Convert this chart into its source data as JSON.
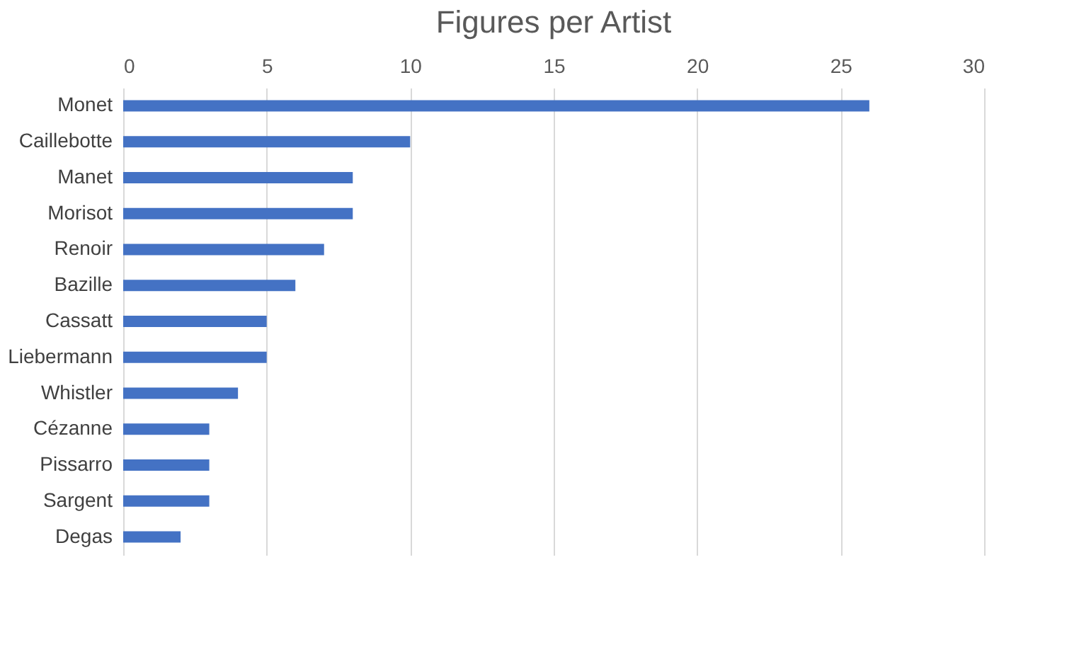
{
  "chart_data": {
    "type": "bar",
    "orientation": "horizontal",
    "title": "Figures per Artist",
    "categories": [
      "Monet",
      "Caillebotte",
      "Manet",
      "Morisot",
      "Renoir",
      "Bazille",
      "Cassatt",
      "Liebermann",
      "Whistler",
      "Cézanne",
      "Pissarro",
      "Sargent",
      "Degas"
    ],
    "values": [
      26,
      10,
      8,
      8,
      7,
      6,
      5,
      5,
      4,
      3,
      3,
      3,
      2
    ],
    "color": "#4472c4",
    "xlim": [
      0,
      30
    ],
    "xticks": [
      0,
      5,
      10,
      15,
      20,
      25,
      30
    ],
    "grid": "x"
  }
}
